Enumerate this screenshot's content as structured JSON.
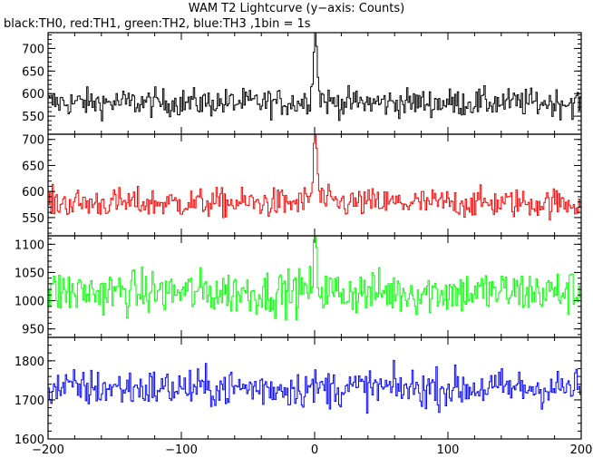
{
  "title": "WAM T2 Lightcurve (y−axis: Counts)",
  "subtitle": "black:TH0, red:TH1, green:TH2, blue:TH3 ,1bin = 1s",
  "chart_data": [
    {
      "type": "line",
      "name": "TH0",
      "color": "#000000",
      "x_range": [
        -200,
        200
      ],
      "bin_size": 1,
      "ylim": [
        510,
        735
      ],
      "y_ticks": [
        550,
        600,
        650,
        700
      ],
      "baseline": 580,
      "noise": 22,
      "peak": {
        "x": 0,
        "y": 735
      },
      "grid": false
    },
    {
      "type": "line",
      "name": "TH1",
      "color": "#ff0000",
      "x_range": [
        -200,
        200
      ],
      "bin_size": 1,
      "ylim": [
        515,
        710
      ],
      "y_ticks": [
        550,
        600,
        650,
        700
      ],
      "baseline": 578,
      "noise": 20,
      "peak": {
        "x": 0,
        "y": 710
      },
      "grid": false
    },
    {
      "type": "line",
      "name": "TH2",
      "color": "#00ff00",
      "x_range": [
        -200,
        200
      ],
      "bin_size": 1,
      "ylim": [
        935,
        1115
      ],
      "y_ticks": [
        950,
        1000,
        1050,
        1100
      ],
      "baseline": 1015,
      "noise": 28,
      "peak": {
        "x": 0,
        "y": 1095
      },
      "grid": false
    },
    {
      "type": "line",
      "name": "TH3",
      "color": "#0000ff",
      "x_range": [
        -200,
        200
      ],
      "bin_size": 1,
      "ylim": [
        1600,
        1860
      ],
      "y_ticks": [
        1600,
        1700,
        1800
      ],
      "baseline": 1730,
      "noise": 35,
      "peak": null,
      "grid": false
    }
  ],
  "x_axis": {
    "ticks": [
      -200,
      -100,
      0,
      100,
      200
    ],
    "tick_labels": [
      "−200",
      "−100",
      "0",
      "100",
      "200"
    ]
  }
}
